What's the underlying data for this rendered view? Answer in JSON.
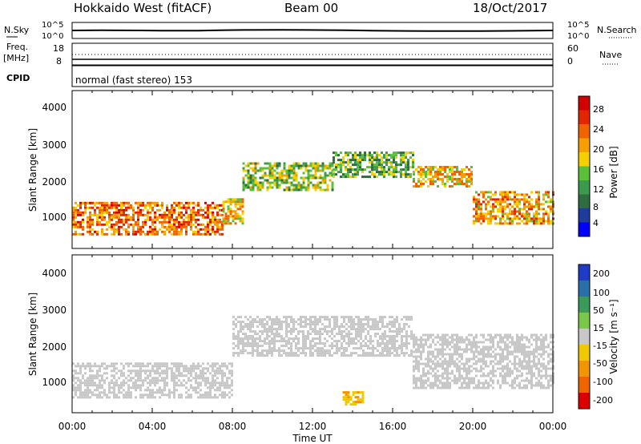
{
  "header": {
    "station": "Hokkaido West (fitACF)",
    "beam": "Beam 00",
    "date": "18/Oct/2017"
  },
  "noise_panel": {
    "left_label": "N.Sky",
    "right_label": "N.Search",
    "left_ticks": [
      "10^5",
      "10^0"
    ],
    "right_ticks": [
      "10^5",
      "10^0"
    ]
  },
  "freq_panel": {
    "left_label_1": "Freq.",
    "left_label_2": "[MHz]",
    "left_ticks": [
      "18",
      "8"
    ],
    "right_label": "Nave",
    "right_ticks": [
      "60",
      "0"
    ]
  },
  "cpid_panel": {
    "label": "CPID",
    "mode_text": "normal (fast stereo) 153"
  },
  "power_panel": {
    "ylabel": "Slant Range [km]",
    "yticks": [
      "4000",
      "3000",
      "2000",
      "1000"
    ],
    "colorbar_label": "Power [dB]",
    "colorbar_ticks": [
      "28",
      "24",
      "20",
      "16",
      "12",
      "8",
      "4"
    ],
    "colors": [
      "#0000ff",
      "#1e3c9c",
      "#2e6e3e",
      "#3c9a4c",
      "#5bbf3b",
      "#f5d000",
      "#f5a000",
      "#f06400",
      "#e32500",
      "#d20000"
    ]
  },
  "velocity_panel": {
    "ylabel": "Slant Range [km]",
    "yticks": [
      "4000",
      "3000",
      "2000",
      "1000"
    ],
    "colorbar_label": "Velocity [m s⁻¹]",
    "colorbar_ticks": [
      "200",
      "100",
      "50",
      "15",
      "-15",
      "-50",
      "-100",
      "-200"
    ],
    "colors": [
      "#1e3cc8",
      "#2a6eaa",
      "#3a9a5a",
      "#7ac84a",
      "#c8c8c8",
      "#f0c800",
      "#f09600",
      "#f06400",
      "#dc0000"
    ]
  },
  "xaxis": {
    "label": "Time UT",
    "ticks": [
      "00:00",
      "04:00",
      "08:00",
      "12:00",
      "16:00",
      "20:00",
      "00:00"
    ]
  },
  "chart_data": [
    {
      "type": "heatmap",
      "title": "Power",
      "xlabel": "Time UT",
      "ylabel": "Slant Range [km]",
      "xlim": [
        0,
        24
      ],
      "ylim": [
        200,
        4600
      ],
      "zlabel": "Power [dB]",
      "zlim": [
        0,
        30
      ],
      "regions": [
        {
          "t": [
            0,
            7.5
          ],
          "r": [
            600,
            1500
          ],
          "level": 22
        },
        {
          "t": [
            7.5,
            8.5
          ],
          "r": [
            900,
            1600
          ],
          "level": 18
        },
        {
          "t": [
            8.5,
            13
          ],
          "r": [
            1800,
            2600
          ],
          "level": 14
        },
        {
          "t": [
            13,
            17
          ],
          "r": [
            2200,
            2900
          ],
          "level": 12
        },
        {
          "t": [
            17,
            20
          ],
          "r": [
            1900,
            2500
          ],
          "level": 18
        },
        {
          "t": [
            20,
            24
          ],
          "r": [
            900,
            1800
          ],
          "level": 20
        }
      ]
    },
    {
      "type": "heatmap",
      "title": "Velocity",
      "xlabel": "Time UT",
      "ylabel": "Slant Range [km]",
      "xlim": [
        0,
        24
      ],
      "ylim": [
        200,
        4600
      ],
      "zlabel": "Velocity [m s-1]",
      "zlim": [
        -200,
        200
      ],
      "regions": [
        {
          "t": [
            0,
            8
          ],
          "r": [
            600,
            1600
          ],
          "level": 0
        },
        {
          "t": [
            8,
            17
          ],
          "r": [
            1800,
            2900
          ],
          "level": 0
        },
        {
          "t": [
            17,
            24
          ],
          "r": [
            900,
            2400
          ],
          "level": 0
        },
        {
          "t": [
            13.5,
            14.5
          ],
          "r": [
            400,
            800
          ],
          "level": -60
        }
      ]
    }
  ]
}
